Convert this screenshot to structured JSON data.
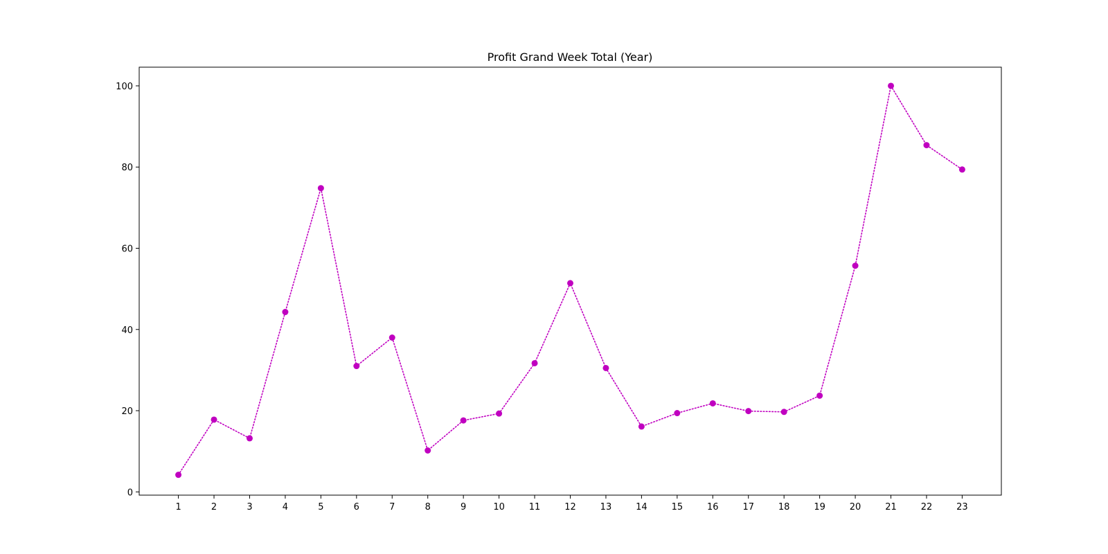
{
  "chart_data": {
    "type": "line",
    "title": "Profit Grand Week Total (Year)",
    "xlabel": "",
    "ylabel": "",
    "x": [
      1,
      2,
      3,
      4,
      5,
      6,
      7,
      8,
      9,
      10,
      11,
      12,
      13,
      14,
      15,
      16,
      17,
      18,
      19,
      20,
      21,
      22,
      23
    ],
    "series": [
      {
        "values": [
          4.2,
          17.8,
          13.2,
          44.3,
          74.8,
          31.0,
          38.0,
          10.2,
          17.6,
          19.3,
          31.7,
          51.4,
          30.5,
          16.1,
          19.4,
          21.8,
          19.9,
          19.7,
          23.7,
          55.7,
          100.0,
          85.4,
          79.4
        ],
        "color": "#c000c0",
        "line_style": "dotted",
        "marker": "circle"
      }
    ],
    "xlim": [
      -0.1,
      24.1
    ],
    "ylim": [
      -0.8,
      104.6
    ],
    "yticks": [
      0,
      20,
      40,
      60,
      80,
      100
    ],
    "grid": false,
    "legend": "none"
  }
}
